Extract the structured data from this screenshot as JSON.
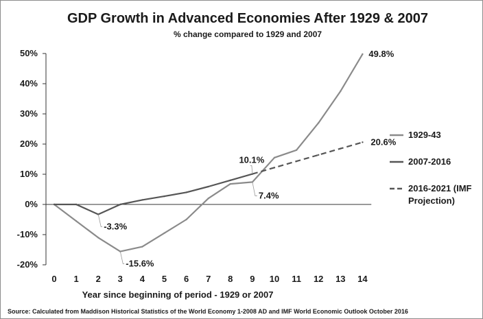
{
  "chart_data": {
    "type": "line",
    "title": "GDP Growth in Advanced Economies After 1929 & 2007",
    "subtitle": "% change compared to 1929 and 2007",
    "xlabel": "Year since beginning of period - 1929 or 2007",
    "ylabel": "",
    "source": "Source: Calculated from Maddison Historical Statistics of the World Economy 1-2008 AD and IMF World Economic Outlook October 2016",
    "xlim": [
      0,
      14
    ],
    "ylim": [
      -20,
      50
    ],
    "x_ticks": [
      "0",
      "1",
      "2",
      "3",
      "4",
      "5",
      "6",
      "7",
      "8",
      "9",
      "10",
      "11",
      "12",
      "13",
      "14"
    ],
    "y_ticks": [
      "-20%",
      "-10%",
      "0%",
      "10%",
      "20%",
      "30%",
      "40%",
      "50%"
    ],
    "grid": false,
    "legend_position": "right",
    "series": [
      {
        "name": "1929-43",
        "color": "#8a8a8a",
        "style": "solid",
        "x": [
          0,
          1,
          2,
          3,
          4,
          5,
          6,
          7,
          8,
          9,
          10,
          11,
          12,
          13,
          14
        ],
        "values": [
          0,
          -5.5,
          -11,
          -15.6,
          -14,
          -9.5,
          -5,
          2,
          6.8,
          7.4,
          15.5,
          18,
          27,
          37.5,
          49.8
        ]
      },
      {
        "name": "2007-2016",
        "color": "#555555",
        "style": "solid",
        "x": [
          0,
          1,
          2,
          3,
          4,
          5,
          6,
          7,
          8,
          9
        ],
        "values": [
          0,
          0,
          -3.3,
          0,
          1.5,
          2.7,
          4,
          5.9,
          8,
          10.1
        ]
      },
      {
        "name": "2016-2021 (IMF Projection)",
        "color": "#555555",
        "style": "dashed",
        "x": [
          9,
          10,
          11,
          12,
          13,
          14
        ],
        "values": [
          10.1,
          12.2,
          14.3,
          16.4,
          18.5,
          20.6
        ]
      }
    ],
    "annotations": [
      {
        "text": "49.8%",
        "x": 14,
        "y": 49.8,
        "leader": false
      },
      {
        "text": "20.6%",
        "x": 14,
        "y": 20.6,
        "leader": false
      },
      {
        "text": "10.1%",
        "x": 9,
        "y": 10.1,
        "leader": true
      },
      {
        "text": "7.4%",
        "x": 9,
        "y": 7.4,
        "leader": true
      },
      {
        "text": "-3.3%",
        "x": 2,
        "y": -3.3,
        "leader": true
      },
      {
        "text": "-15.6%",
        "x": 3,
        "y": -15.6,
        "leader": true
      }
    ]
  }
}
